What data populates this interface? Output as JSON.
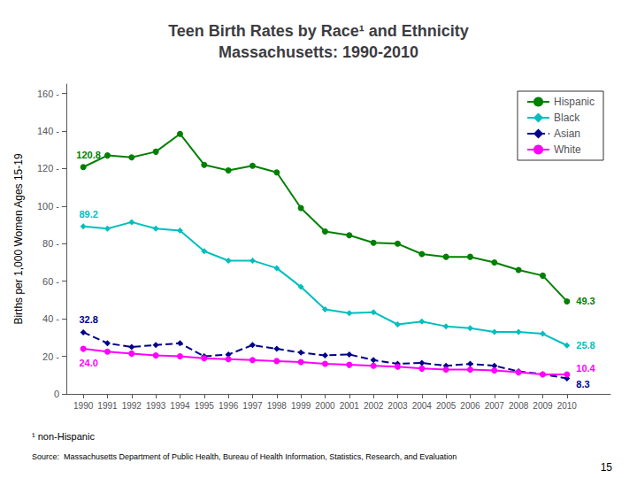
{
  "chart_data": {
    "type": "line",
    "title": "Teen Birth Rates by Race¹ and Ethnicity\nMassachusetts: 1990-2010",
    "ylabel": "Births per 1,000 Women Ages 15-19",
    "x": [
      1990,
      1991,
      1992,
      1993,
      1994,
      1995,
      1996,
      1997,
      1998,
      1999,
      2000,
      2001,
      2002,
      2003,
      2004,
      2005,
      2006,
      2007,
      2008,
      2009,
      2010
    ],
    "series": [
      {
        "name": "Hispanic",
        "color": "#008000",
        "marker": "circle",
        "line_style": "solid",
        "values": [
          120.8,
          127.0,
          126.0,
          129.0,
          138.5,
          122.0,
          119.0,
          121.5,
          118.0,
          99.0,
          86.5,
          84.5,
          80.5,
          80.0,
          74.5,
          73.0,
          73.0,
          70.0,
          66.0,
          63.0,
          49.3
        ]
      },
      {
        "name": "Black",
        "color": "#00BFBF",
        "marker": "diamond",
        "line_style": "solid",
        "values": [
          89.2,
          88.0,
          91.5,
          88.0,
          87.0,
          76.0,
          71.0,
          71.0,
          67.0,
          57.0,
          45.0,
          43.0,
          43.5,
          37.0,
          38.5,
          36.0,
          35.0,
          33.0,
          33.0,
          32.0,
          25.8
        ]
      },
      {
        "name": "Asian",
        "color": "#00008B",
        "marker": "diamond",
        "line_style": "dashed",
        "values": [
          32.8,
          27.0,
          25.0,
          26.0,
          27.0,
          20.0,
          21.0,
          26.0,
          24.0,
          22.0,
          20.5,
          21.0,
          18.0,
          16.0,
          16.5,
          15.0,
          16.0,
          15.0,
          12.0,
          10.5,
          8.3
        ]
      },
      {
        "name": "White",
        "color": "#FF00FF",
        "marker": "circle",
        "line_style": "solid",
        "values": [
          24.0,
          22.5,
          21.5,
          20.5,
          20.0,
          19.0,
          18.5,
          18.0,
          17.5,
          17.0,
          16.0,
          15.5,
          15.0,
          14.5,
          13.5,
          13.0,
          13.0,
          12.5,
          11.5,
          10.4,
          10.4
        ]
      }
    ],
    "xlim": [
      1989.3,
      2011.8
    ],
    "xticks": [
      1990,
      1991,
      1992,
      1993,
      1994,
      1995,
      1996,
      1997,
      1998,
      1999,
      2000,
      2001,
      2002,
      2003,
      2004,
      2005,
      2006,
      2007,
      2008,
      2009,
      2010
    ],
    "ylim": [
      0,
      165
    ],
    "yticks": [
      0,
      {
        "value": 20,
        "label": "20 -"
      },
      {
        "value": 40,
        "label": "40 -"
      },
      {
        "value": 60,
        "label": "60 -"
      },
      {
        "value": 80,
        "label": "80 -"
      },
      {
        "value": 100,
        "label": "100 -"
      },
      {
        "value": 120,
        "label": "120 -"
      },
      {
        "value": 140,
        "label": "140 -"
      },
      {
        "value": 160,
        "label": "160 -"
      }
    ],
    "grid": false,
    "legend": "upper right",
    "annotations": [
      {
        "series": "Hispanic",
        "x": 1990,
        "y": 120.8,
        "text": "120.8"
      },
      {
        "series": "Black",
        "x": 1990,
        "y": 89.2,
        "text": "89.2"
      },
      {
        "series": "Asian",
        "x": 1990,
        "y": 32.8,
        "text": "32.8"
      },
      {
        "series": "White",
        "x": 1990,
        "y": 24.0,
        "text": "24.0"
      },
      {
        "series": "Hispanic",
        "x": 2010,
        "y": 49.3,
        "text": "49.3"
      },
      {
        "series": "Black",
        "x": 2010,
        "y": 25.8,
        "text": "25.8"
      },
      {
        "series": "White",
        "x": 2010,
        "y": 10.4,
        "text": "10.4"
      },
      {
        "series": "Asian",
        "x": 2010,
        "y": 8.3,
        "text": "8.3"
      }
    ],
    "footnote": "¹ non-Hispanic",
    "source": "Source:  Massachusetts Department of Public Health, Bureau of Health Information, Statistics, Research, and Evaluation",
    "page_number": "15"
  }
}
